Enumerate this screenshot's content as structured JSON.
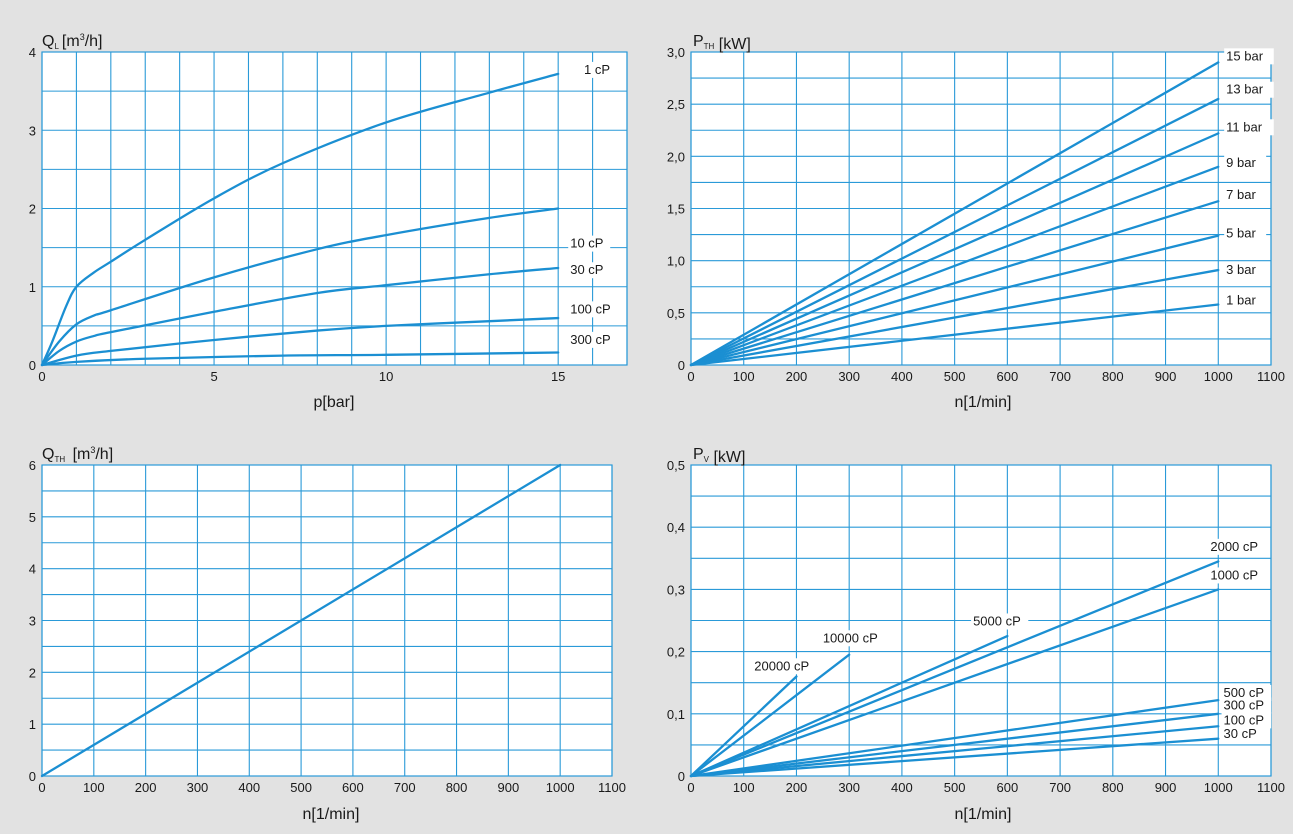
{
  "colors": {
    "line": "#1b8fd2",
    "grid": "#2a9ad8",
    "background": "#e2e2e2",
    "plot": "#ffffff",
    "text": "#1a1a1a"
  },
  "chart_data": [
    {
      "type": "line",
      "title": "",
      "ylabel": {
        "main": "Q",
        "sub": "L",
        "sup": "3",
        "unit_pre": "[m",
        "unit_post": "/h]"
      },
      "xlabel": "p[bar]",
      "xlim": [
        0,
        17
      ],
      "ylim": [
        0,
        4
      ],
      "xticks": [
        0,
        5,
        10,
        15
      ],
      "xtick_labels": [
        "0",
        "5",
        "10",
        "15"
      ],
      "yticks": [
        0,
        1,
        2,
        3,
        4
      ],
      "ytick_labels": [
        "0",
        "1",
        "2",
        "3",
        "4"
      ],
      "grid_x": [
        0,
        1,
        2,
        3,
        4,
        5,
        6,
        7,
        8,
        9,
        10,
        11,
        12,
        13,
        14,
        15,
        16,
        17
      ],
      "grid_y": [
        0,
        0.5,
        1,
        1.5,
        2,
        2.5,
        3,
        3.5,
        4
      ],
      "series": [
        {
          "name": "1 cP",
          "points": [
            [
              0,
              0
            ],
            [
              0.3,
              0.3
            ],
            [
              0.7,
              0.75
            ],
            [
              1,
              1
            ],
            [
              1.5,
              1.18
            ],
            [
              2,
              1.32
            ],
            [
              3,
              1.6
            ],
            [
              5,
              2.13
            ],
            [
              7,
              2.58
            ],
            [
              10,
              3.1
            ],
            [
              13,
              3.48
            ],
            [
              15,
              3.72
            ]
          ]
        },
        {
          "name": "10 cP",
          "points": [
            [
              0,
              0
            ],
            [
              0.5,
              0.3
            ],
            [
              1,
              0.52
            ],
            [
              1.5,
              0.63
            ],
            [
              2,
              0.7
            ],
            [
              5,
              1.12
            ],
            [
              8,
              1.48
            ],
            [
              10,
              1.66
            ],
            [
              13,
              1.88
            ],
            [
              15,
              2.0
            ]
          ]
        },
        {
          "name": "30 cP",
          "points": [
            [
              0,
              0
            ],
            [
              0.5,
              0.18
            ],
            [
              1,
              0.3
            ],
            [
              1.5,
              0.37
            ],
            [
              2,
              0.42
            ],
            [
              5,
              0.68
            ],
            [
              8,
              0.92
            ],
            [
              10,
              1.02
            ],
            [
              13,
              1.16
            ],
            [
              15,
              1.24
            ]
          ]
        },
        {
          "name": "100 cP",
          "points": [
            [
              0,
              0
            ],
            [
              1,
              0.12
            ],
            [
              2,
              0.18
            ],
            [
              5,
              0.32
            ],
            [
              8,
              0.44
            ],
            [
              10,
              0.5
            ],
            [
              13,
              0.56
            ],
            [
              15,
              0.6
            ]
          ]
        },
        {
          "name": "300 cP",
          "points": [
            [
              0,
              0
            ],
            [
              1,
              0.04
            ],
            [
              3,
              0.08
            ],
            [
              7,
              0.12
            ],
            [
              10,
              0.13
            ],
            [
              15,
              0.16
            ]
          ]
        }
      ],
      "series_labels": [
        "1 cP",
        "10 cP",
        "30 cP",
        "100 cP",
        "300 cP"
      ]
    },
    {
      "type": "line",
      "title": "",
      "ylabel": {
        "main": "P",
        "sub": "TH",
        "unit_post": " [kW]"
      },
      "xlabel": "n[1/min]",
      "xlim": [
        0,
        1100
      ],
      "ylim": [
        0,
        3
      ],
      "xticks": [
        0,
        100,
        200,
        300,
        400,
        500,
        600,
        700,
        800,
        900,
        1000,
        1100
      ],
      "xtick_labels": [
        "0",
        "100",
        "200",
        "300",
        "400",
        "500",
        "600",
        "700",
        "800",
        "900",
        "1000",
        "1100"
      ],
      "yticks": [
        0,
        0.5,
        1,
        1.5,
        2,
        2.5,
        3
      ],
      "ytick_labels": [
        "0",
        "0,5",
        "1,0",
        "1,5",
        "2,0",
        "2,5",
        "3,0"
      ],
      "grid_x": [
        0,
        100,
        200,
        300,
        400,
        500,
        600,
        700,
        800,
        900,
        1000,
        1100
      ],
      "grid_y": [
        0,
        0.25,
        0.5,
        0.75,
        1,
        1.25,
        1.5,
        1.75,
        2,
        2.25,
        2.5,
        2.75,
        3
      ],
      "series": [
        {
          "name": "15 bar",
          "points": [
            [
              0,
              0
            ],
            [
              1000,
              2.9
            ]
          ]
        },
        {
          "name": "13 bar",
          "points": [
            [
              0,
              0
            ],
            [
              1000,
              2.55
            ]
          ]
        },
        {
          "name": "11 bar",
          "points": [
            [
              0,
              0
            ],
            [
              1000,
              2.22
            ]
          ]
        },
        {
          "name": "9 bar",
          "points": [
            [
              0,
              0
            ],
            [
              1000,
              1.9
            ]
          ]
        },
        {
          "name": "7 bar",
          "points": [
            [
              0,
              0
            ],
            [
              1000,
              1.57
            ]
          ]
        },
        {
          "name": "5 bar",
          "points": [
            [
              0,
              0
            ],
            [
              1000,
              1.24
            ]
          ]
        },
        {
          "name": "3 bar",
          "points": [
            [
              0,
              0
            ],
            [
              1000,
              0.91
            ]
          ]
        },
        {
          "name": "1 bar",
          "points": [
            [
              0,
              0
            ],
            [
              1000,
              0.58
            ]
          ]
        }
      ],
      "series_labels": [
        "15 bar",
        "13 bar",
        "11 bar",
        "9 bar",
        "7 bar",
        "5 bar",
        "3 bar",
        "1 bar"
      ]
    },
    {
      "type": "line",
      "title": "",
      "ylabel": {
        "main": "Q",
        "sub": "TH",
        "sup": "3",
        "unit_pre": " [m",
        "unit_post": "/h]"
      },
      "xlabel": "n[1/min]",
      "xlim": [
        0,
        1100
      ],
      "ylim": [
        0,
        6
      ],
      "xticks": [
        0,
        100,
        200,
        300,
        400,
        500,
        600,
        700,
        800,
        900,
        1000,
        1100
      ],
      "xtick_labels": [
        "0",
        "100",
        "200",
        "300",
        "400",
        "500",
        "600",
        "700",
        "800",
        "900",
        "1000",
        "1100"
      ],
      "yticks": [
        0,
        1,
        2,
        3,
        4,
        5,
        6
      ],
      "ytick_labels": [
        "0",
        "1",
        "2",
        "3",
        "4",
        "5",
        "6"
      ],
      "grid_x": [
        0,
        100,
        200,
        300,
        400,
        500,
        600,
        700,
        800,
        900,
        1000,
        1100
      ],
      "grid_y": [
        0,
        0.5,
        1,
        1.5,
        2,
        2.5,
        3,
        3.5,
        4,
        4.5,
        5,
        5.5,
        6
      ],
      "series": [
        {
          "name": "Q_TH",
          "points": [
            [
              0,
              0
            ],
            [
              1000,
              6
            ]
          ]
        }
      ],
      "series_labels": []
    },
    {
      "type": "line",
      "title": "",
      "ylabel": {
        "main": "P",
        "sub": "V",
        "unit_post": " [kW]"
      },
      "xlabel": "n[1/min]",
      "xlim": [
        0,
        1100
      ],
      "ylim": [
        0,
        0.5
      ],
      "xticks": [
        0,
        100,
        200,
        300,
        400,
        500,
        600,
        700,
        800,
        900,
        1000,
        1100
      ],
      "xtick_labels": [
        "0",
        "100",
        "200",
        "300",
        "400",
        "500",
        "600",
        "700",
        "800",
        "900",
        "1000",
        "1100"
      ],
      "yticks": [
        0,
        0.1,
        0.2,
        0.3,
        0.4,
        0.5
      ],
      "ytick_labels": [
        "0",
        "0,1",
        "0,2",
        "0,3",
        "0,4",
        "0,5"
      ],
      "grid_x": [
        0,
        100,
        200,
        300,
        400,
        500,
        600,
        700,
        800,
        900,
        1000,
        1100
      ],
      "grid_y": [
        0,
        0.05,
        0.1,
        0.15,
        0.2,
        0.25,
        0.3,
        0.35,
        0.4,
        0.45,
        0.5
      ],
      "series": [
        {
          "name": "20000 cP",
          "points": [
            [
              0,
              0
            ],
            [
              200,
              0.16
            ]
          ]
        },
        {
          "name": "10000 cP",
          "points": [
            [
              0,
              0
            ],
            [
              300,
              0.195
            ]
          ]
        },
        {
          "name": "5000 cP",
          "points": [
            [
              0,
              0
            ],
            [
              600,
              0.225
            ]
          ]
        },
        {
          "name": "2000 cP",
          "points": [
            [
              0,
              0
            ],
            [
              1000,
              0.345
            ]
          ]
        },
        {
          "name": "1000 cP",
          "points": [
            [
              0,
              0
            ],
            [
              1000,
              0.3
            ]
          ]
        },
        {
          "name": "500 cP",
          "points": [
            [
              0,
              0
            ],
            [
              1000,
              0.122
            ]
          ]
        },
        {
          "name": "300 cP",
          "points": [
            [
              0,
              0
            ],
            [
              1000,
              0.1
            ]
          ]
        },
        {
          "name": "100 cP",
          "points": [
            [
              0,
              0
            ],
            [
              1000,
              0.08
            ]
          ]
        },
        {
          "name": "30 cP",
          "points": [
            [
              0,
              0
            ],
            [
              1000,
              0.06
            ]
          ]
        }
      ],
      "series_labels": [
        "20000 cP",
        "10000 cP",
        "5000 cP",
        "2000 cP",
        "1000 cP",
        "500 cP",
        "300 cP",
        "100 cP",
        "30 cP"
      ]
    }
  ]
}
